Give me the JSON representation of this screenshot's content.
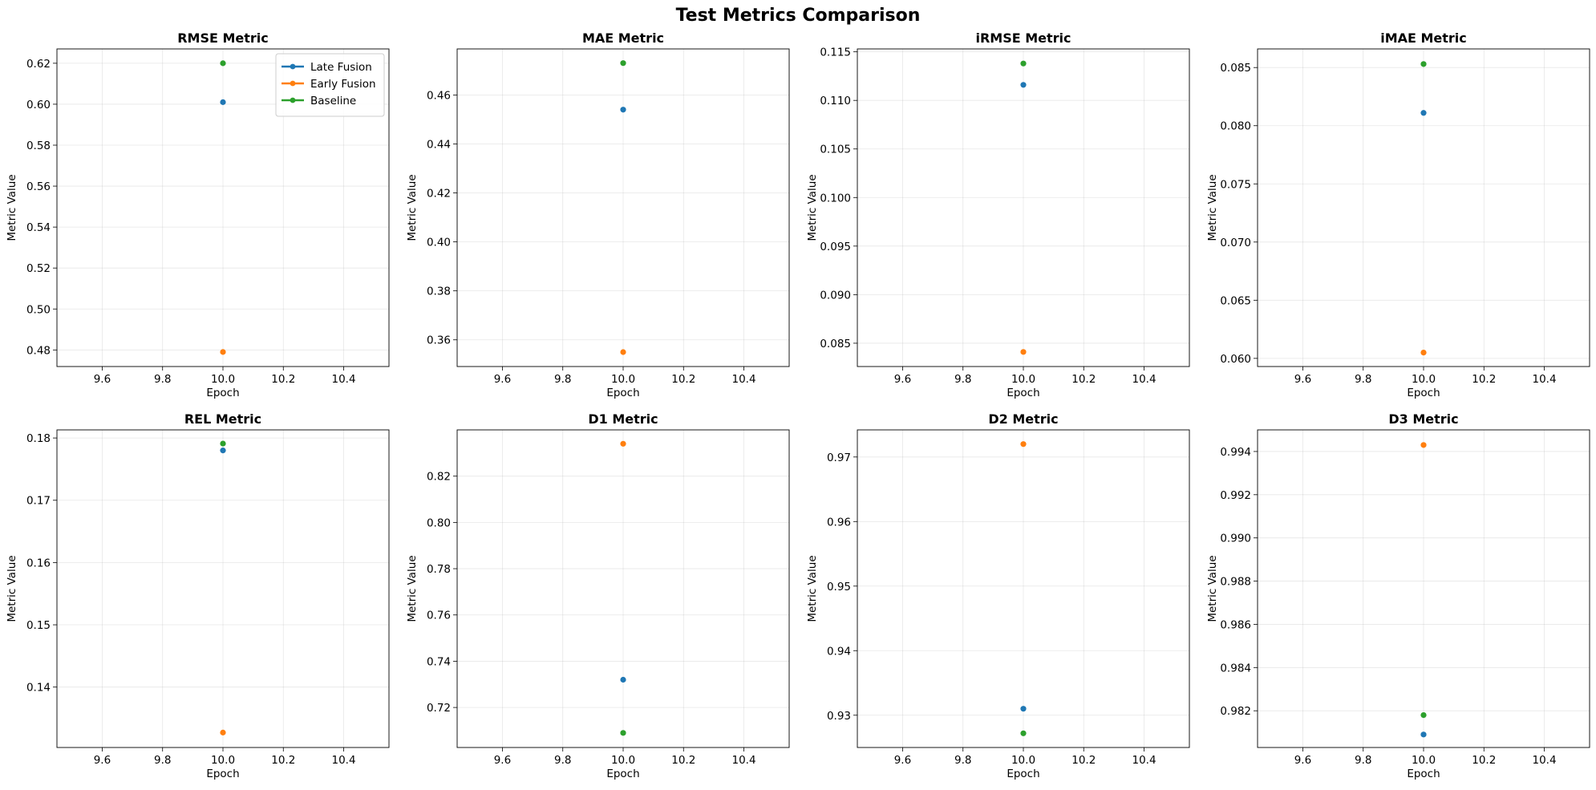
{
  "figure_title": "Test Metrics Comparison",
  "colors": {
    "Late Fusion": "#1f77b4",
    "Early Fusion": "#ff7f0e",
    "Baseline": "#2ca02c"
  },
  "legend": {
    "placement": "top-right",
    "entries": [
      "Late Fusion",
      "Early Fusion",
      "Baseline"
    ]
  },
  "chart_data": [
    {
      "type": "scatter",
      "title": "RMSE Metric",
      "xlabel": "Epoch",
      "ylabel": "Metric Value",
      "xlim": [
        9.45,
        10.55
      ],
      "xticks": [
        "9.6",
        "9.8",
        "10.0",
        "10.2",
        "10.4"
      ],
      "ylim": [
        0.4719,
        0.627
      ],
      "yticks": [
        "0.48",
        "0.50",
        "0.52",
        "0.54",
        "0.56",
        "0.58",
        "0.60",
        "0.62"
      ],
      "grid": true,
      "legend": true,
      "series": [
        {
          "name": "Late Fusion",
          "x": [
            10.0
          ],
          "y": [
            0.601
          ]
        },
        {
          "name": "Early Fusion",
          "x": [
            10.0
          ],
          "y": [
            0.479
          ]
        },
        {
          "name": "Baseline",
          "x": [
            10.0
          ],
          "y": [
            0.62
          ]
        }
      ]
    },
    {
      "type": "scatter",
      "title": "MAE Metric",
      "xlabel": "Epoch",
      "ylabel": "Metric Value",
      "xlim": [
        9.45,
        10.55
      ],
      "xticks": [
        "9.6",
        "9.8",
        "10.0",
        "10.2",
        "10.4"
      ],
      "ylim": [
        0.3491,
        0.4788
      ],
      "yticks": [
        "0.36",
        "0.38",
        "0.40",
        "0.42",
        "0.44",
        "0.46"
      ],
      "grid": true,
      "legend": false,
      "series": [
        {
          "name": "Late Fusion",
          "x": [
            10.0
          ],
          "y": [
            0.454
          ]
        },
        {
          "name": "Early Fusion",
          "x": [
            10.0
          ],
          "y": [
            0.355
          ]
        },
        {
          "name": "Baseline",
          "x": [
            10.0
          ],
          "y": [
            0.473
          ]
        }
      ]
    },
    {
      "type": "scatter",
      "title": "iRMSE Metric",
      "xlabel": "Epoch",
      "ylabel": "Metric Value",
      "xlim": [
        9.45,
        10.55
      ],
      "xticks": [
        "9.6",
        "9.8",
        "10.0",
        "10.2",
        "10.4"
      ],
      "ylim": [
        0.0826,
        0.1153
      ],
      "yticks": [
        "0.085",
        "0.090",
        "0.095",
        "0.100",
        "0.105",
        "0.110",
        "0.115"
      ],
      "grid": true,
      "legend": false,
      "series": [
        {
          "name": "Late Fusion",
          "x": [
            10.0
          ],
          "y": [
            0.1116
          ]
        },
        {
          "name": "Early Fusion",
          "x": [
            10.0
          ],
          "y": [
            0.0841
          ]
        },
        {
          "name": "Baseline",
          "x": [
            10.0
          ],
          "y": [
            0.1138
          ]
        }
      ]
    },
    {
      "type": "scatter",
      "title": "iMAE Metric",
      "xlabel": "Epoch",
      "ylabel": "Metric Value",
      "xlim": [
        9.45,
        10.55
      ],
      "xticks": [
        "9.6",
        "9.8",
        "10.0",
        "10.2",
        "10.4"
      ],
      "ylim": [
        0.0593,
        0.0866
      ],
      "yticks": [
        "0.060",
        "0.065",
        "0.070",
        "0.075",
        "0.080",
        "0.085"
      ],
      "grid": true,
      "legend": false,
      "series": [
        {
          "name": "Late Fusion",
          "x": [
            10.0
          ],
          "y": [
            0.0811
          ]
        },
        {
          "name": "Early Fusion",
          "x": [
            10.0
          ],
          "y": [
            0.0605
          ]
        },
        {
          "name": "Baseline",
          "x": [
            10.0
          ],
          "y": [
            0.0853
          ]
        }
      ]
    },
    {
      "type": "scatter",
      "title": "REL Metric",
      "xlabel": "Epoch",
      "ylabel": "Metric Value",
      "xlim": [
        9.45,
        10.55
      ],
      "xticks": [
        "9.6",
        "9.8",
        "10.0",
        "10.2",
        "10.4"
      ],
      "ylim": [
        0.1303,
        0.1813
      ],
      "yticks": [
        "0.14",
        "0.15",
        "0.16",
        "0.17",
        "0.18"
      ],
      "grid": true,
      "legend": false,
      "series": [
        {
          "name": "Late Fusion",
          "x": [
            10.0
          ],
          "y": [
            0.178
          ]
        },
        {
          "name": "Early Fusion",
          "x": [
            10.0
          ],
          "y": [
            0.1327
          ]
        },
        {
          "name": "Baseline",
          "x": [
            10.0
          ],
          "y": [
            0.1791
          ]
        }
      ]
    },
    {
      "type": "scatter",
      "title": "D1 Metric",
      "xlabel": "Epoch",
      "ylabel": "Metric Value",
      "xlim": [
        9.45,
        10.55
      ],
      "xticks": [
        "9.6",
        "9.8",
        "10.0",
        "10.2",
        "10.4"
      ],
      "ylim": [
        0.7027,
        0.84
      ],
      "yticks": [
        "0.72",
        "0.74",
        "0.76",
        "0.78",
        "0.80",
        "0.82"
      ],
      "grid": true,
      "legend": false,
      "series": [
        {
          "name": "Late Fusion",
          "x": [
            10.0
          ],
          "y": [
            0.732
          ]
        },
        {
          "name": "Early Fusion",
          "x": [
            10.0
          ],
          "y": [
            0.834
          ]
        },
        {
          "name": "Baseline",
          "x": [
            10.0
          ],
          "y": [
            0.709
          ]
        }
      ]
    },
    {
      "type": "scatter",
      "title": "D2 Metric",
      "xlabel": "Epoch",
      "ylabel": "Metric Value",
      "xlim": [
        9.45,
        10.55
      ],
      "xticks": [
        "9.6",
        "9.8",
        "10.0",
        "10.2",
        "10.4"
      ],
      "ylim": [
        0.925,
        0.9742
      ],
      "yticks": [
        "0.93",
        "0.94",
        "0.95",
        "0.96",
        "0.97"
      ],
      "grid": true,
      "legend": false,
      "series": [
        {
          "name": "Late Fusion",
          "x": [
            10.0
          ],
          "y": [
            0.931
          ]
        },
        {
          "name": "Early Fusion",
          "x": [
            10.0
          ],
          "y": [
            0.972
          ]
        },
        {
          "name": "Baseline",
          "x": [
            10.0
          ],
          "y": [
            0.9272
          ]
        }
      ]
    },
    {
      "type": "scatter",
      "title": "D3 Metric",
      "xlabel": "Epoch",
      "ylabel": "Metric Value",
      "xlim": [
        9.45,
        10.55
      ],
      "xticks": [
        "9.6",
        "9.8",
        "10.0",
        "10.2",
        "10.4"
      ],
      "ylim": [
        0.9803,
        0.995
      ],
      "yticks": [
        "0.982",
        "0.984",
        "0.986",
        "0.988",
        "0.990",
        "0.992",
        "0.994"
      ],
      "grid": true,
      "legend": false,
      "series": [
        {
          "name": "Late Fusion",
          "x": [
            10.0
          ],
          "y": [
            0.9809
          ]
        },
        {
          "name": "Early Fusion",
          "x": [
            10.0
          ],
          "y": [
            0.9943
          ]
        },
        {
          "name": "Baseline",
          "x": [
            10.0
          ],
          "y": [
            0.9818
          ]
        }
      ]
    }
  ]
}
